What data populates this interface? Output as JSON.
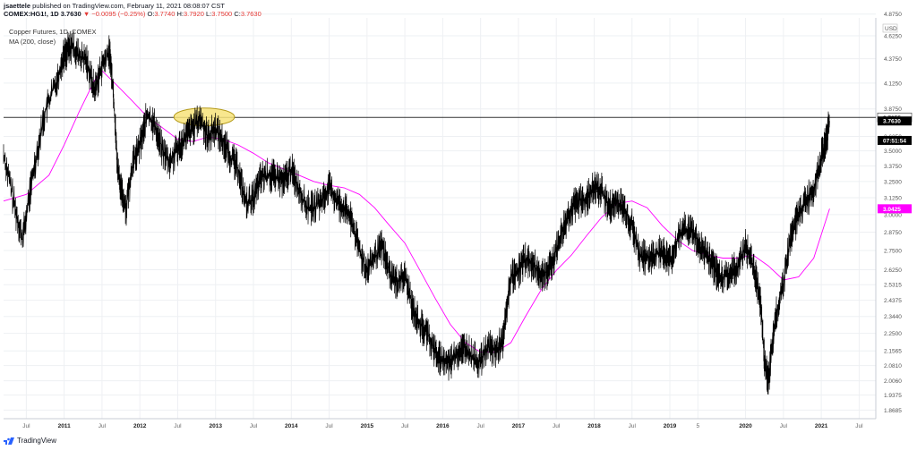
{
  "header": {
    "author": "jsaettele",
    "published": "published on TradingView.com, February 11, 2021 08:08:07 CST",
    "symbol": "COMEX:HG1!, 1D",
    "last": "3.7630",
    "change": "−0.0095 (−0.25%)",
    "o_label": "O:",
    "o": "3.7740",
    "h_label": "H:",
    "h": "3.7920",
    "l_label": "L:",
    "l": "3.7500",
    "c_label": "C:",
    "c": "3.7630"
  },
  "legend": {
    "title": "Copper Futures, 1D, COMEX",
    "ma": "MA (200, close)"
  },
  "branding": {
    "label": "TradingView"
  },
  "colors": {
    "price": "#000000",
    "ma": "#ff00ff",
    "hline": "#333333",
    "ellipse_fill": "#f7e37a",
    "ellipse_stroke": "#b59b1c",
    "grid": "#eef0f3"
  },
  "chart_data": {
    "type": "line",
    "title": "Copper Futures, 1D, COMEX",
    "currency_label": "USD",
    "y_scale": "log",
    "ylim": [
      1.83,
      4.83
    ],
    "y_ticks": [
      "4.8750",
      "4.6250",
      "4.3750",
      "4.1250",
      "3.8750",
      "3.6250",
      "3.5000",
      "3.3750",
      "3.2500",
      "3.1250",
      "3.0000",
      "2.8750",
      "2.7500",
      "2.6250",
      "2.5315",
      "2.4375",
      "2.3440",
      "2.2500",
      "2.1565",
      "2.0810",
      "2.0060",
      "1.9375",
      "1.8685"
    ],
    "x_ticks": [
      "Jul",
      "2011",
      "Jul",
      "2012",
      "Jul",
      "2013",
      "Jul",
      "2014",
      "Jul",
      "2015",
      "Jul",
      "2016",
      "Jul",
      "2017",
      "Jul",
      "2018",
      "Jul",
      "2019",
      "5",
      "2020",
      "Jul",
      "2021",
      "Jul"
    ],
    "x_tick_dates": [
      2010.5,
      2011.0,
      2011.5,
      2012.0,
      2012.5,
      2013.0,
      2013.5,
      2014.0,
      2014.5,
      2015.0,
      2015.5,
      2016.0,
      2016.5,
      2017.0,
      2017.5,
      2018.0,
      2018.5,
      2019.0,
      2019.37,
      2020.0,
      2020.5,
      2021.0,
      2021.5
    ],
    "horizontal_line": 3.7955,
    "price_labels": [
      {
        "text": "3.7955",
        "value": 3.7955,
        "style": "line"
      },
      {
        "text": "3.7630",
        "value": 3.763,
        "style": "last"
      },
      {
        "text": "07:51:54",
        "value": 3.59,
        "style": "last"
      },
      {
        "text": "3.0425",
        "value": 3.0425,
        "style": "ma"
      }
    ],
    "annotation": {
      "type": "ellipse",
      "x_from": 2012.45,
      "x_to": 2013.25,
      "y_center": 3.8
    },
    "series": [
      {
        "name": "Copper Futures",
        "x": [
          2010.2,
          2010.35,
          2010.45,
          2010.6,
          2010.75,
          2010.9,
          2011.0,
          2011.1,
          2011.2,
          2011.3,
          2011.4,
          2011.5,
          2011.6,
          2011.65,
          2011.7,
          2011.75,
          2011.82,
          2011.9,
          2012.0,
          2012.1,
          2012.2,
          2012.3,
          2012.4,
          2012.5,
          2012.6,
          2012.7,
          2012.8,
          2012.9,
          2013.0,
          2013.1,
          2013.2,
          2013.3,
          2013.4,
          2013.5,
          2013.6,
          2013.7,
          2013.8,
          2013.9,
          2014.0,
          2014.1,
          2014.2,
          2014.3,
          2014.4,
          2014.5,
          2014.6,
          2014.7,
          2014.8,
          2014.9,
          2015.0,
          2015.1,
          2015.2,
          2015.3,
          2015.4,
          2015.5,
          2015.6,
          2015.7,
          2015.8,
          2015.9,
          2016.0,
          2016.1,
          2016.2,
          2016.3,
          2016.4,
          2016.5,
          2016.6,
          2016.7,
          2016.8,
          2016.9,
          2017.0,
          2017.1,
          2017.2,
          2017.3,
          2017.4,
          2017.5,
          2017.6,
          2017.7,
          2017.8,
          2017.9,
          2018.0,
          2018.1,
          2018.2,
          2018.3,
          2018.4,
          2018.5,
          2018.6,
          2018.7,
          2018.8,
          2018.9,
          2019.0,
          2019.1,
          2019.2,
          2019.3,
          2019.4,
          2019.5,
          2019.6,
          2019.7,
          2019.8,
          2019.9,
          2020.0,
          2020.1,
          2020.15,
          2020.2,
          2020.25,
          2020.3,
          2020.4,
          2020.5,
          2020.6,
          2020.7,
          2020.8,
          2020.9,
          2021.0,
          2021.05,
          2021.11
        ],
        "values": [
          3.48,
          3.05,
          2.82,
          3.35,
          3.85,
          4.15,
          4.42,
          4.52,
          4.4,
          4.35,
          4.05,
          4.3,
          4.45,
          4.05,
          3.4,
          3.18,
          3.05,
          3.38,
          3.55,
          3.82,
          3.72,
          3.5,
          3.4,
          3.52,
          3.62,
          3.7,
          3.78,
          3.62,
          3.7,
          3.58,
          3.45,
          3.35,
          3.08,
          3.12,
          3.28,
          3.3,
          3.28,
          3.25,
          3.35,
          3.2,
          3.05,
          3.05,
          3.1,
          3.2,
          3.1,
          3.05,
          2.95,
          2.75,
          2.62,
          2.7,
          2.78,
          2.6,
          2.55,
          2.58,
          2.4,
          2.3,
          2.25,
          2.15,
          2.1,
          2.1,
          2.15,
          2.18,
          2.12,
          2.1,
          2.18,
          2.15,
          2.22,
          2.58,
          2.62,
          2.7,
          2.65,
          2.6,
          2.62,
          2.75,
          2.92,
          3.05,
          3.1,
          3.12,
          3.2,
          3.18,
          3.05,
          3.1,
          3.05,
          2.92,
          2.72,
          2.7,
          2.72,
          2.75,
          2.68,
          2.82,
          2.9,
          2.88,
          2.78,
          2.72,
          2.62,
          2.58,
          2.6,
          2.65,
          2.78,
          2.65,
          2.55,
          2.4,
          2.1,
          2.0,
          2.35,
          2.55,
          2.85,
          3.0,
          3.1,
          3.2,
          3.45,
          3.55,
          3.763
        ]
      },
      {
        "name": "MA (200, close)",
        "x": [
          2010.2,
          2010.5,
          2010.8,
          2011.0,
          2011.2,
          2011.4,
          2011.5,
          2011.7,
          2011.9,
          2012.1,
          2012.3,
          2012.5,
          2012.7,
          2012.9,
          2013.1,
          2013.3,
          2013.5,
          2013.7,
          2013.9,
          2014.1,
          2014.3,
          2014.5,
          2014.7,
          2014.9,
          2015.1,
          2015.3,
          2015.5,
          2015.7,
          2015.9,
          2016.1,
          2016.3,
          2016.5,
          2016.7,
          2016.9,
          2017.1,
          2017.3,
          2017.5,
          2017.7,
          2017.9,
          2018.1,
          2018.3,
          2018.5,
          2018.7,
          2018.9,
          2019.1,
          2019.3,
          2019.5,
          2019.7,
          2019.9,
          2020.1,
          2020.3,
          2020.5,
          2020.7,
          2020.9,
          2021.11
        ],
        "values": [
          3.1,
          3.15,
          3.3,
          3.55,
          3.85,
          4.15,
          4.25,
          4.1,
          3.95,
          3.8,
          3.7,
          3.6,
          3.58,
          3.62,
          3.6,
          3.55,
          3.48,
          3.4,
          3.35,
          3.3,
          3.25,
          3.22,
          3.2,
          3.15,
          3.05,
          2.92,
          2.8,
          2.62,
          2.45,
          2.3,
          2.2,
          2.15,
          2.15,
          2.2,
          2.35,
          2.5,
          2.62,
          2.72,
          2.85,
          2.98,
          3.08,
          3.1,
          3.05,
          2.92,
          2.82,
          2.75,
          2.72,
          2.7,
          2.7,
          2.72,
          2.65,
          2.56,
          2.58,
          2.7,
          3.0425
        ]
      }
    ],
    "grid": true
  }
}
